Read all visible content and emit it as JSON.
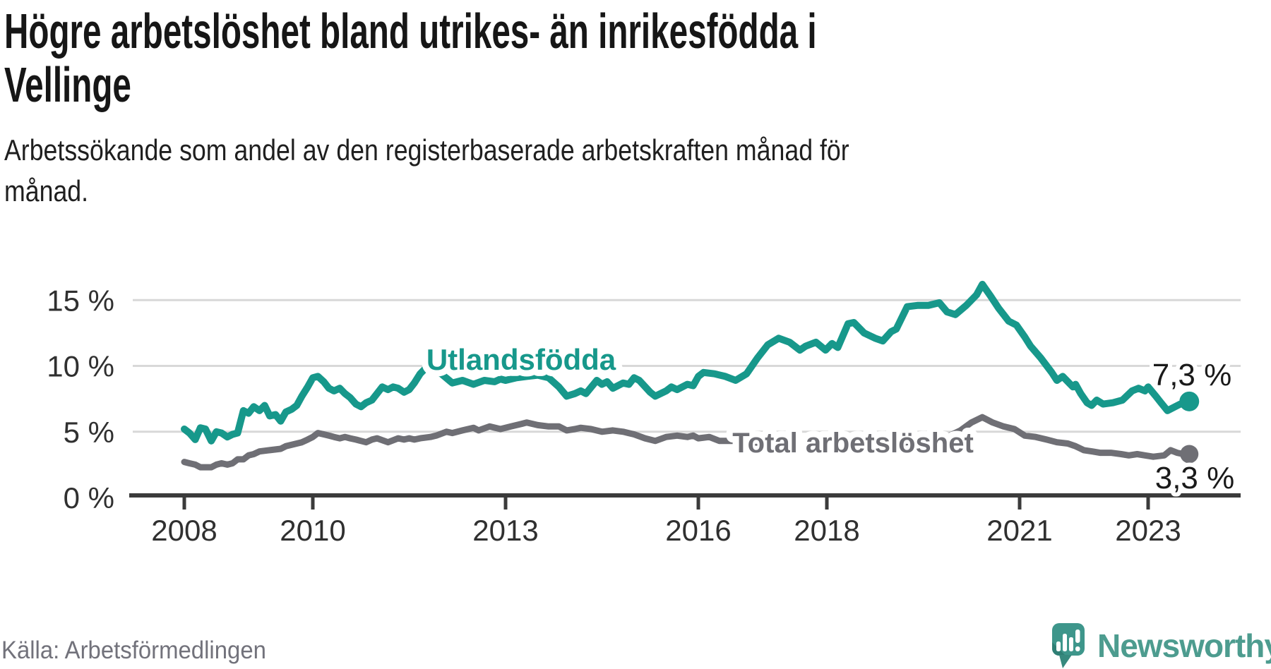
{
  "title": {
    "line1": "Högre arbetslöshet bland utrikes- än inrikesfödda i",
    "line2": "Vellinge"
  },
  "subtitle": {
    "line1": "Arbetssökande som andel av den registerbaserade arbetskraften månad för",
    "line2": "månad."
  },
  "source": "Källa: Arbetsförmedlingen",
  "logo": {
    "name": "Newsworthy",
    "icon": "newsworthy-speech-bubble-chart-icon",
    "bubble_color": "#3e968b",
    "bubble_shadow_color": "#2d7c72",
    "text_color": "#4d9c8f"
  },
  "chart_data": {
    "type": "line",
    "unit": "%",
    "grid": "horizontal",
    "legend_position": "inline-labels",
    "ylim": [
      0,
      17.4
    ],
    "x_range_years": [
      2008.0,
      2023.64
    ],
    "y_ticks": [
      {
        "value": 0,
        "label": "0 %"
      },
      {
        "value": 5,
        "label": "5 %"
      },
      {
        "value": 10,
        "label": "10 %"
      },
      {
        "value": 15,
        "label": "15 %"
      }
    ],
    "x_ticks": [
      {
        "year": 2008,
        "label": "2008"
      },
      {
        "year": 2010,
        "label": "2010"
      },
      {
        "year": 2013,
        "label": "2013"
      },
      {
        "year": 2016,
        "label": "2016"
      },
      {
        "year": 2018,
        "label": "2018"
      },
      {
        "year": 2021,
        "label": "2021"
      },
      {
        "year": 2023,
        "label": "2023"
      }
    ],
    "series": [
      {
        "name": "Utlandsfödda",
        "color": "#17988b",
        "end_value": 7.3,
        "end_label": "7,3 %",
        "points": [
          [
            2008.0,
            5.2
          ],
          [
            2008.08,
            4.9
          ],
          [
            2008.17,
            4.4
          ],
          [
            2008.25,
            5.3
          ],
          [
            2008.33,
            5.2
          ],
          [
            2008.42,
            4.3
          ],
          [
            2008.5,
            5.0
          ],
          [
            2008.58,
            4.9
          ],
          [
            2008.67,
            4.6
          ],
          [
            2008.75,
            4.8
          ],
          [
            2008.83,
            4.9
          ],
          [
            2008.92,
            6.6
          ],
          [
            2009.0,
            6.4
          ],
          [
            2009.08,
            6.9
          ],
          [
            2009.17,
            6.6
          ],
          [
            2009.25,
            7.0
          ],
          [
            2009.33,
            6.2
          ],
          [
            2009.42,
            6.3
          ],
          [
            2009.5,
            5.8
          ],
          [
            2009.58,
            6.5
          ],
          [
            2009.67,
            6.7
          ],
          [
            2009.75,
            7.0
          ],
          [
            2009.83,
            7.7
          ],
          [
            2009.92,
            8.4
          ],
          [
            2010.0,
            9.1
          ],
          [
            2010.08,
            9.2
          ],
          [
            2010.17,
            8.8
          ],
          [
            2010.25,
            8.3
          ],
          [
            2010.33,
            8.1
          ],
          [
            2010.42,
            8.3
          ],
          [
            2010.5,
            7.9
          ],
          [
            2010.58,
            7.6
          ],
          [
            2010.67,
            7.1
          ],
          [
            2010.75,
            6.9
          ],
          [
            2010.83,
            7.2
          ],
          [
            2010.92,
            7.4
          ],
          [
            2011.0,
            7.9
          ],
          [
            2011.08,
            8.4
          ],
          [
            2011.17,
            8.2
          ],
          [
            2011.25,
            8.4
          ],
          [
            2011.33,
            8.3
          ],
          [
            2011.42,
            8.0
          ],
          [
            2011.5,
            8.2
          ],
          [
            2011.58,
            8.7
          ],
          [
            2011.67,
            9.4
          ],
          [
            2011.75,
            9.8
          ],
          [
            2011.83,
            9.9
          ],
          [
            2011.92,
            9.6
          ],
          [
            2012.0,
            9.4
          ],
          [
            2012.17,
            8.7
          ],
          [
            2012.33,
            8.9
          ],
          [
            2012.5,
            8.6
          ],
          [
            2012.67,
            8.9
          ],
          [
            2012.83,
            8.8
          ],
          [
            2012.92,
            9.0
          ],
          [
            2013.0,
            8.9
          ],
          [
            2013.17,
            9.1
          ],
          [
            2013.33,
            9.2
          ],
          [
            2013.5,
            9.3
          ],
          [
            2013.67,
            9.1
          ],
          [
            2013.83,
            8.4
          ],
          [
            2013.95,
            7.7
          ],
          [
            2014.08,
            7.9
          ],
          [
            2014.17,
            8.1
          ],
          [
            2014.25,
            7.9
          ],
          [
            2014.42,
            8.9
          ],
          [
            2014.5,
            8.6
          ],
          [
            2014.58,
            8.8
          ],
          [
            2014.67,
            8.3
          ],
          [
            2014.83,
            8.7
          ],
          [
            2014.92,
            8.6
          ],
          [
            2015.0,
            9.1
          ],
          [
            2015.08,
            8.9
          ],
          [
            2015.25,
            8.0
          ],
          [
            2015.33,
            7.7
          ],
          [
            2015.5,
            8.1
          ],
          [
            2015.58,
            8.4
          ],
          [
            2015.67,
            8.2
          ],
          [
            2015.83,
            8.6
          ],
          [
            2015.92,
            8.5
          ],
          [
            2016.0,
            9.2
          ],
          [
            2016.08,
            9.5
          ],
          [
            2016.25,
            9.4
          ],
          [
            2016.42,
            9.2
          ],
          [
            2016.58,
            8.9
          ],
          [
            2016.75,
            9.4
          ],
          [
            2016.92,
            10.6
          ],
          [
            2017.08,
            11.6
          ],
          [
            2017.25,
            12.1
          ],
          [
            2017.42,
            11.8
          ],
          [
            2017.58,
            11.2
          ],
          [
            2017.67,
            11.5
          ],
          [
            2017.83,
            11.8
          ],
          [
            2017.98,
            11.2
          ],
          [
            2018.08,
            11.7
          ],
          [
            2018.17,
            11.4
          ],
          [
            2018.33,
            13.2
          ],
          [
            2018.42,
            13.3
          ],
          [
            2018.58,
            12.5
          ],
          [
            2018.75,
            12.1
          ],
          [
            2018.87,
            11.9
          ],
          [
            2019.0,
            12.6
          ],
          [
            2019.08,
            12.8
          ],
          [
            2019.25,
            14.5
          ],
          [
            2019.42,
            14.6
          ],
          [
            2019.58,
            14.6
          ],
          [
            2019.75,
            14.8
          ],
          [
            2019.87,
            14.1
          ],
          [
            2020.0,
            13.9
          ],
          [
            2020.17,
            14.6
          ],
          [
            2020.33,
            15.4
          ],
          [
            2020.42,
            16.2
          ],
          [
            2020.55,
            15.3
          ],
          [
            2020.67,
            14.4
          ],
          [
            2020.83,
            13.4
          ],
          [
            2020.95,
            13.1
          ],
          [
            2021.08,
            12.2
          ],
          [
            2021.17,
            11.5
          ],
          [
            2021.33,
            10.6
          ],
          [
            2021.5,
            9.5
          ],
          [
            2021.58,
            8.9
          ],
          [
            2021.67,
            9.2
          ],
          [
            2021.75,
            8.8
          ],
          [
            2021.83,
            8.4
          ],
          [
            2021.87,
            8.6
          ],
          [
            2021.95,
            7.9
          ],
          [
            2022.05,
            7.2
          ],
          [
            2022.12,
            7.0
          ],
          [
            2022.2,
            7.4
          ],
          [
            2022.3,
            7.1
          ],
          [
            2022.45,
            7.2
          ],
          [
            2022.6,
            7.4
          ],
          [
            2022.75,
            8.1
          ],
          [
            2022.85,
            8.3
          ],
          [
            2022.95,
            8.1
          ],
          [
            2023.0,
            8.4
          ],
          [
            2023.12,
            7.7
          ],
          [
            2023.2,
            7.2
          ],
          [
            2023.3,
            6.6
          ],
          [
            2023.42,
            6.9
          ],
          [
            2023.5,
            7.1
          ],
          [
            2023.58,
            7.1
          ],
          [
            2023.64,
            7.3
          ]
        ]
      },
      {
        "name": "Total arbetslöshet",
        "color": "#6f6f75",
        "end_value": 3.3,
        "end_label": "3,3 %",
        "points": [
          [
            2008.0,
            2.7
          ],
          [
            2008.08,
            2.6
          ],
          [
            2008.17,
            2.5
          ],
          [
            2008.25,
            2.3
          ],
          [
            2008.42,
            2.3
          ],
          [
            2008.5,
            2.5
          ],
          [
            2008.58,
            2.6
          ],
          [
            2008.67,
            2.5
          ],
          [
            2008.75,
            2.6
          ],
          [
            2008.83,
            2.9
          ],
          [
            2008.92,
            2.9
          ],
          [
            2009.0,
            3.2
          ],
          [
            2009.08,
            3.3
          ],
          [
            2009.17,
            3.5
          ],
          [
            2009.33,
            3.6
          ],
          [
            2009.5,
            3.7
          ],
          [
            2009.58,
            3.9
          ],
          [
            2009.75,
            4.1
          ],
          [
            2009.83,
            4.2
          ],
          [
            2009.92,
            4.4
          ],
          [
            2010.0,
            4.6
          ],
          [
            2010.08,
            4.9
          ],
          [
            2010.17,
            4.8
          ],
          [
            2010.25,
            4.7
          ],
          [
            2010.33,
            4.6
          ],
          [
            2010.42,
            4.5
          ],
          [
            2010.5,
            4.6
          ],
          [
            2010.58,
            4.5
          ],
          [
            2010.67,
            4.4
          ],
          [
            2010.75,
            4.3
          ],
          [
            2010.83,
            4.2
          ],
          [
            2010.92,
            4.4
          ],
          [
            2011.0,
            4.5
          ],
          [
            2011.17,
            4.2
          ],
          [
            2011.33,
            4.5
          ],
          [
            2011.42,
            4.4
          ],
          [
            2011.5,
            4.5
          ],
          [
            2011.58,
            4.4
          ],
          [
            2011.67,
            4.5
          ],
          [
            2011.83,
            4.6
          ],
          [
            2011.92,
            4.7
          ],
          [
            2012.08,
            5.0
          ],
          [
            2012.17,
            4.9
          ],
          [
            2012.33,
            5.1
          ],
          [
            2012.5,
            5.3
          ],
          [
            2012.58,
            5.1
          ],
          [
            2012.75,
            5.4
          ],
          [
            2012.92,
            5.2
          ],
          [
            2013.08,
            5.4
          ],
          [
            2013.25,
            5.6
          ],
          [
            2013.33,
            5.7
          ],
          [
            2013.5,
            5.5
          ],
          [
            2013.67,
            5.4
          ],
          [
            2013.83,
            5.4
          ],
          [
            2013.95,
            5.1
          ],
          [
            2014.08,
            5.2
          ],
          [
            2014.17,
            5.3
          ],
          [
            2014.33,
            5.2
          ],
          [
            2014.5,
            5.0
          ],
          [
            2014.67,
            5.1
          ],
          [
            2014.83,
            5.0
          ],
          [
            2015.0,
            4.8
          ],
          [
            2015.17,
            4.5
          ],
          [
            2015.33,
            4.3
          ],
          [
            2015.5,
            4.6
          ],
          [
            2015.67,
            4.7
          ],
          [
            2015.83,
            4.6
          ],
          [
            2015.92,
            4.7
          ],
          [
            2016.0,
            4.5
          ],
          [
            2016.17,
            4.6
          ],
          [
            2016.33,
            4.3
          ],
          [
            2016.58,
            4.3
          ],
          [
            2016.83,
            4.2
          ],
          [
            2017.08,
            4.1
          ],
          [
            2017.42,
            4.1
          ],
          [
            2017.75,
            4.0
          ],
          [
            2018.08,
            4.0
          ],
          [
            2018.42,
            4.0
          ],
          [
            2018.75,
            4.0
          ],
          [
            2019.08,
            4.1
          ],
          [
            2019.42,
            4.3
          ],
          [
            2019.67,
            4.4
          ],
          [
            2019.87,
            4.6
          ],
          [
            2020.08,
            5.1
          ],
          [
            2020.25,
            5.7
          ],
          [
            2020.42,
            6.1
          ],
          [
            2020.58,
            5.7
          ],
          [
            2020.75,
            5.4
          ],
          [
            2020.92,
            5.2
          ],
          [
            2021.08,
            4.7
          ],
          [
            2021.25,
            4.6
          ],
          [
            2021.42,
            4.4
          ],
          [
            2021.58,
            4.2
          ],
          [
            2021.75,
            4.1
          ],
          [
            2021.87,
            3.9
          ],
          [
            2022.0,
            3.6
          ],
          [
            2022.13,
            3.5
          ],
          [
            2022.25,
            3.4
          ],
          [
            2022.42,
            3.4
          ],
          [
            2022.58,
            3.3
          ],
          [
            2022.7,
            3.2
          ],
          [
            2022.83,
            3.3
          ],
          [
            2022.95,
            3.2
          ],
          [
            2023.08,
            3.1
          ],
          [
            2023.25,
            3.2
          ],
          [
            2023.35,
            3.6
          ],
          [
            2023.45,
            3.4
          ],
          [
            2023.55,
            3.3
          ],
          [
            2023.64,
            3.3
          ]
        ]
      }
    ]
  }
}
